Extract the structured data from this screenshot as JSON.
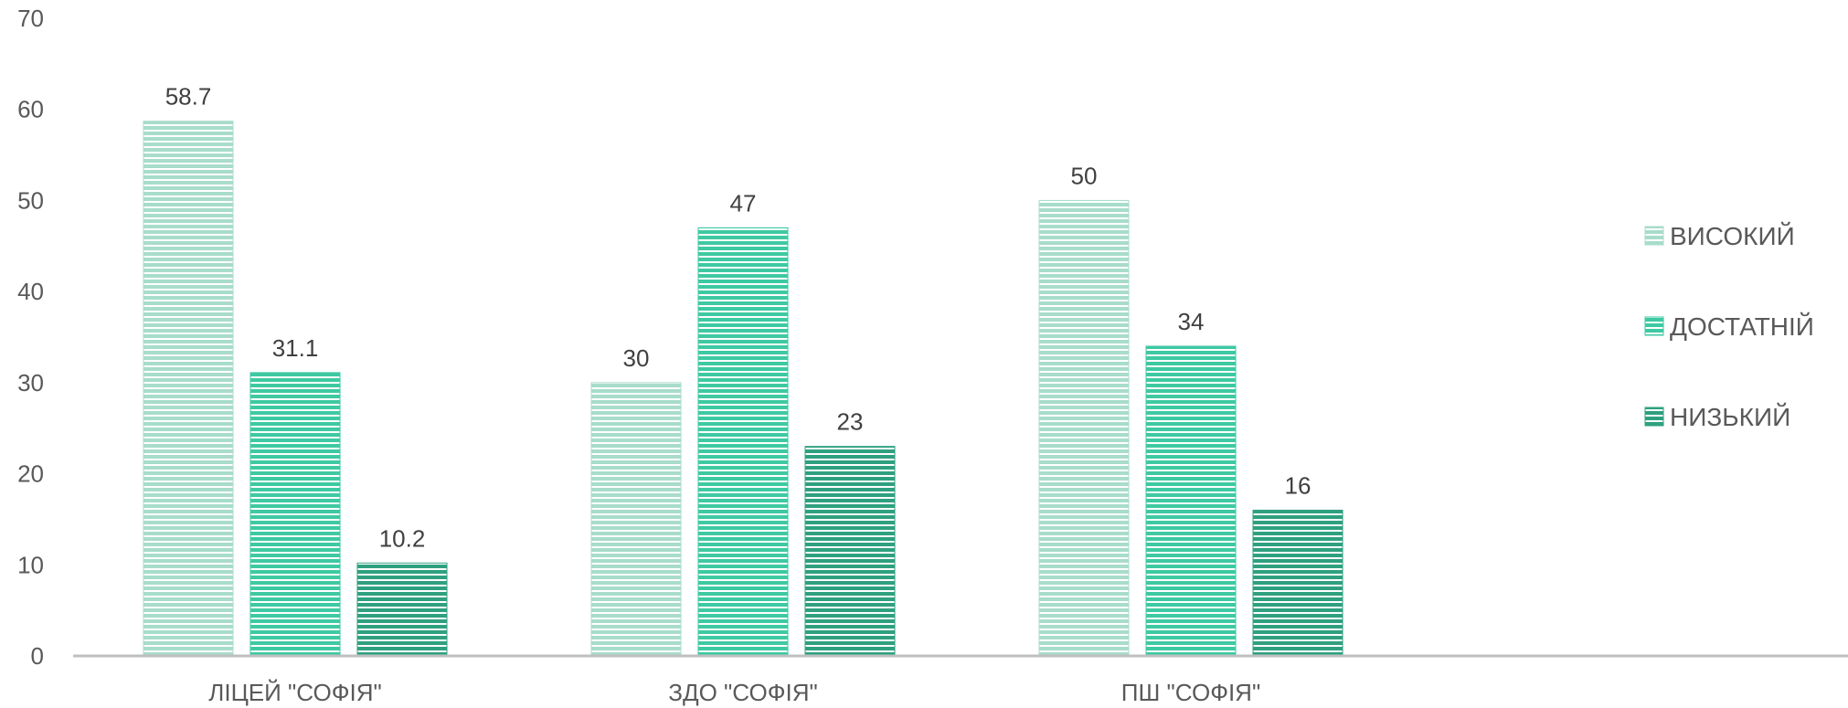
{
  "chart_data": {
    "type": "bar",
    "categories": [
      "ЛІЦЕЙ \"СОФІЯ\"",
      "ЗДО \"СОФІЯ\"",
      "ПШ \"СОФІЯ\""
    ],
    "series": [
      {
        "name": "ВИСОКИЙ",
        "values": [
          58.7,
          30,
          50
        ],
        "color": "#a8dccb"
      },
      {
        "name": "ДОСТАТНІЙ",
        "values": [
          31.1,
          47,
          34
        ],
        "color": "#3ec9a2"
      },
      {
        "name": "НИЗЬКИЙ",
        "values": [
          10.2,
          23,
          16
        ],
        "color": "#2fa07f"
      }
    ],
    "ylim": [
      0,
      70
    ],
    "yticks": [
      0,
      10,
      20,
      30,
      40,
      50,
      60,
      70
    ],
    "grid": false,
    "legend_position": "right",
    "title": "",
    "xlabel": "",
    "ylabel": ""
  }
}
